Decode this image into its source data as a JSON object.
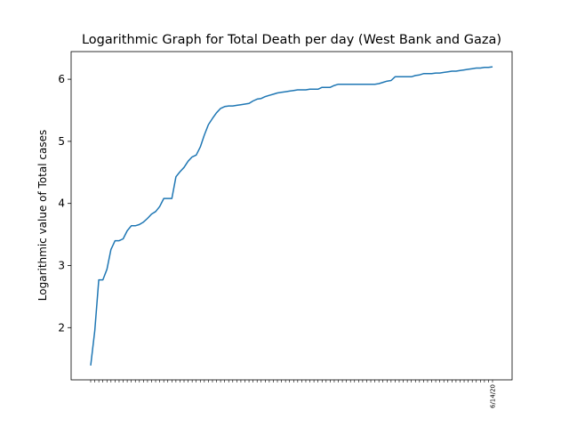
{
  "chart_data": {
    "type": "line",
    "title": "Logarithmic Graph for Total Death per day (West Bank and Gaza)",
    "xlabel": "",
    "ylabel": "Logarithmic value of Total cases",
    "yticks": [
      2,
      3,
      4,
      5,
      6
    ],
    "last_x_tick_label": "6/14/20",
    "x_tick_count": 100,
    "grid": false,
    "line_color": "#1f77b4",
    "series": [
      {
        "values": [
          1.39,
          1.95,
          2.77,
          2.77,
          2.94,
          3.26,
          3.4,
          3.4,
          3.43,
          3.56,
          3.64,
          3.64,
          3.66,
          3.7,
          3.76,
          3.83,
          3.87,
          3.95,
          4.08,
          4.08,
          4.08,
          4.43,
          4.51,
          4.58,
          4.68,
          4.75,
          4.78,
          4.91,
          5.1,
          5.27,
          5.37,
          5.46,
          5.53,
          5.56,
          5.57,
          5.57,
          5.58,
          5.59,
          5.6,
          5.61,
          5.65,
          5.68,
          5.69,
          5.72,
          5.74,
          5.76,
          5.78,
          5.79,
          5.8,
          5.81,
          5.82,
          5.83,
          5.83,
          5.83,
          5.84,
          5.84,
          5.84,
          5.87,
          5.87,
          5.87,
          5.9,
          5.92,
          5.92,
          5.92,
          5.92,
          5.92,
          5.92,
          5.92,
          5.92,
          5.92,
          5.92,
          5.93,
          5.95,
          5.97,
          5.98,
          6.04,
          6.04,
          6.04,
          6.04,
          6.04,
          6.06,
          6.07,
          6.09,
          6.09,
          6.09,
          6.1,
          6.1,
          6.11,
          6.12,
          6.13,
          6.13,
          6.14,
          6.15,
          6.16,
          6.17,
          6.18,
          6.18,
          6.19,
          6.19,
          6.2
        ]
      }
    ]
  }
}
